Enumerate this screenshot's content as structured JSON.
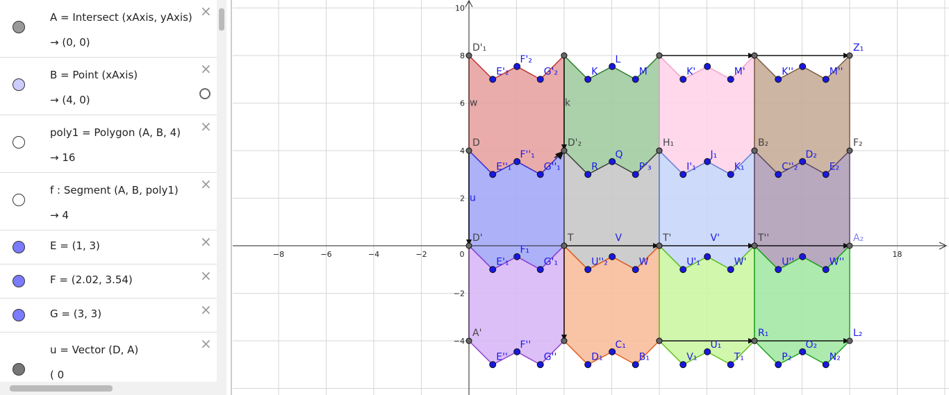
{
  "algebra": {
    "items": [
      {
        "definition": "A = Intersect (xAxis, yAxis)",
        "value": "→  (0, 0)"
      },
      {
        "definition": "B = Point (xAxis)",
        "value": "→  (4, 0)"
      },
      {
        "definition": "poly1 = Polygon (A, B, 4)",
        "value": "→  16"
      },
      {
        "definition": "f : Segment (A, B, poly1)",
        "value": "→  4"
      },
      {
        "definition": "E = (1, 3)"
      },
      {
        "definition": "F = (2.02, 3.54)"
      },
      {
        "definition": "G = (3, 3)"
      },
      {
        "definition": "u = Vector (D, A)",
        "value": "(  0"
      }
    ]
  },
  "graphics": {
    "x_tick_labels": [
      "−8",
      "−6",
      "−4",
      "−2",
      "0",
      "18"
    ],
    "y_tick_labels": [
      "10",
      "8",
      "6",
      "4",
      "2",
      "−2",
      "−4"
    ],
    "point_labels": [
      "D'₁",
      "E'₂",
      "F'₂",
      "G'₂",
      "K",
      "L",
      "M",
      "K'",
      "M'",
      "K''",
      "M''",
      "Z₁",
      "D",
      "E''₁",
      "F''₁",
      "G''₁",
      "D'₂",
      "R",
      "Q",
      "P'₃",
      "H₁",
      "I'₁",
      "J₁",
      "K₁",
      "B₂",
      "C''₂",
      "D₂",
      "E₂",
      "F₂",
      "D'",
      "E'₁",
      "F₁",
      "G'₁",
      "T",
      "U''₂",
      "V",
      "W",
      "T'",
      "U'₁",
      "V'",
      "W'",
      "T''",
      "U''",
      "W''",
      "A₂",
      "A'",
      "E''",
      "F''",
      "G''",
      "D₁",
      "C₁",
      "B₁",
      "V₁",
      "U₁",
      "T₁",
      "R₁",
      "P₂",
      "O₂",
      "N₂",
      "L₂",
      "w",
      "k",
      "u"
    ]
  }
}
